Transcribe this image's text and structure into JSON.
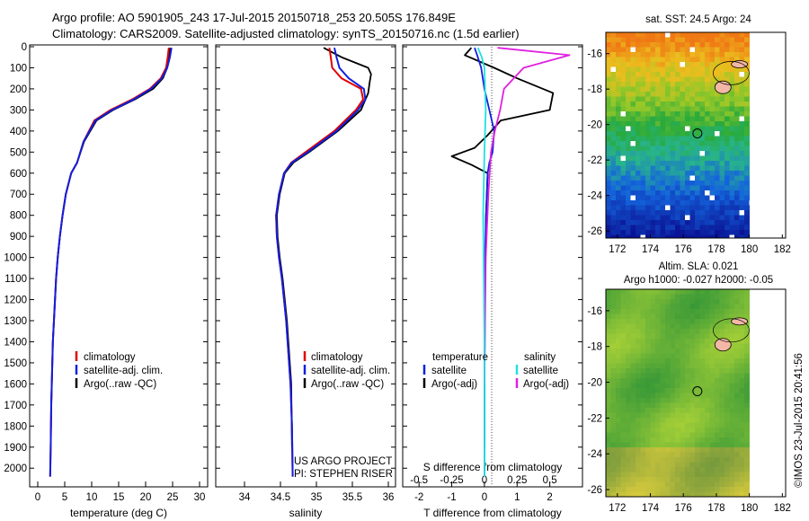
{
  "header": {
    "line1": "Argo profile: AO 5901905_243 17-Jul-2015 20150718_253 20.505S 176.849E",
    "line2": "Climatology: CARS2009. Satellite-adjusted climatology: synTS_20150716.nc (1.5d earlier)"
  },
  "colors": {
    "climatology": "#e00000",
    "satellite": "#1020e0",
    "argo": "#000000",
    "sal_satellite": "#20e0e0",
    "sal_argo": "#e020e0"
  },
  "chart_data": [
    {
      "type": "line",
      "title": "",
      "xlabel": "temperature (deg C)",
      "ylabel": "",
      "xlim": [
        -1.5,
        31.5
      ],
      "ylim": [
        2080,
        0
      ],
      "xticks": [
        "0",
        "5",
        "10",
        "15",
        "20",
        "25",
        "30"
      ],
      "yticks": [
        "0",
        "100",
        "200",
        "300",
        "400",
        "500",
        "600",
        "700",
        "800",
        "900",
        "1000",
        "1100",
        "1200",
        "1300",
        "1400",
        "1500",
        "1600",
        "1700",
        "1800",
        "1900",
        "2000"
      ],
      "legend": [
        "climatology",
        "satellite-adj. clim.",
        "Argo(..raw -QC)"
      ],
      "series": [
        {
          "name": "climatology",
          "x": [
            24.3,
            24.1,
            23.8,
            22.8,
            20.8,
            17.5,
            13.5,
            10.5,
            8.5,
            7.3,
            6.2,
            5.2,
            4.6,
            4.1,
            3.7,
            3.4,
            3.2,
            3.0,
            2.8,
            2.7,
            2.6,
            2.5,
            2.4,
            2.3
          ],
          "y": [
            5,
            50,
            100,
            150,
            200,
            250,
            300,
            350,
            450,
            550,
            600,
            700,
            800,
            900,
            1000,
            1100,
            1200,
            1300,
            1400,
            1500,
            1600,
            1700,
            1900,
            2040
          ]
        },
        {
          "name": "satellite-adj. clim.",
          "x": [
            24.8,
            24.5,
            24.0,
            23.0,
            21.0,
            17.8,
            13.8,
            10.7,
            8.5,
            7.3,
            6.2,
            5.2,
            4.6,
            4.1,
            3.7,
            3.4,
            3.2,
            3.0,
            2.8,
            2.7,
            2.6,
            2.5,
            2.4,
            2.3
          ],
          "y": [
            5,
            50,
            100,
            150,
            200,
            250,
            300,
            350,
            450,
            550,
            600,
            700,
            800,
            900,
            1000,
            1100,
            1200,
            1300,
            1400,
            1500,
            1600,
            1700,
            1900,
            2040
          ]
        },
        {
          "name": "Argo(..raw -QC)",
          "x": [
            24.5,
            24.3,
            24.0,
            23.2,
            21.4,
            18.0,
            14.0,
            10.9,
            8.6,
            7.3,
            6.2,
            5.2,
            4.6,
            4.1,
            3.7,
            3.4,
            3.2,
            3.0,
            2.8,
            2.7,
            2.6,
            2.5,
            2.4
          ],
          "y": [
            5,
            50,
            100,
            150,
            200,
            250,
            300,
            350,
            450,
            550,
            600,
            700,
            800,
            900,
            1000,
            1100,
            1200,
            1300,
            1400,
            1500,
            1600,
            1700,
            1900
          ]
        }
      ],
      "annotations": []
    },
    {
      "type": "line",
      "xlabel": "salinity",
      "xlim": [
        33.6,
        36.1
      ],
      "ylim": [
        2080,
        0
      ],
      "xticks": [
        "34",
        "34.5",
        "35",
        "35.5",
        "36"
      ],
      "legend": [
        "climatology",
        "satellite-adj. clim.",
        "Argo(..raw -QC)"
      ],
      "series": [
        {
          "name": "climatology",
          "x": [
            35.18,
            35.2,
            35.22,
            35.35,
            35.62,
            35.65,
            35.55,
            35.25,
            34.85,
            34.65,
            34.55,
            34.48,
            34.44,
            34.45,
            34.48,
            34.52,
            34.55,
            34.58,
            34.6,
            34.62,
            34.64,
            34.66,
            34.67
          ],
          "y": [
            5,
            50,
            100,
            150,
            200,
            250,
            300,
            400,
            500,
            550,
            600,
            700,
            800,
            900,
            1000,
            1100,
            1200,
            1300,
            1400,
            1500,
            1600,
            1800,
            2040
          ]
        },
        {
          "name": "satellite-adj. clim.",
          "x": [
            35.25,
            35.28,
            35.32,
            35.45,
            35.66,
            35.68,
            35.58,
            35.28,
            34.88,
            34.66,
            34.55,
            34.48,
            34.44,
            34.45,
            34.48,
            34.52,
            34.55,
            34.58,
            34.6,
            34.62,
            34.64,
            34.66,
            34.67
          ],
          "y": [
            5,
            50,
            100,
            150,
            200,
            250,
            300,
            400,
            500,
            550,
            600,
            700,
            800,
            900,
            1000,
            1100,
            1200,
            1300,
            1400,
            1500,
            1600,
            1800,
            2040
          ]
        },
        {
          "name": "Argo(..raw -QC)",
          "x": [
            35.1,
            35.35,
            35.72,
            35.76,
            35.74,
            35.72,
            35.62,
            35.3,
            34.9,
            34.68,
            34.56,
            34.49,
            34.45,
            34.46,
            34.49,
            34.53,
            34.56,
            34.59,
            34.61,
            34.63,
            34.65,
            34.66
          ],
          "y": [
            5,
            50,
            100,
            130,
            170,
            220,
            300,
            400,
            500,
            550,
            600,
            700,
            800,
            900,
            1000,
            1100,
            1200,
            1300,
            1400,
            1500,
            1600,
            1900
          ]
        }
      ],
      "annotations": [
        "US ARGO PROJECT",
        "PI: STEPHEN RISER"
      ]
    },
    {
      "type": "line",
      "xlabel": "T difference from climatology",
      "xlabel_top": "S difference from climatology",
      "xlim": [
        -2.5,
        3
      ],
      "ylim": [
        2080,
        0
      ],
      "xticks": [
        "-2",
        "-1",
        "0",
        "1",
        "2"
      ],
      "xticks_top": [
        "-0.5",
        "-0.25",
        "0",
        "0.25",
        "0.5"
      ],
      "legend_temperature": [
        "temperature",
        "satellite",
        "Argo(-adj)"
      ],
      "legend_salinity": [
        "salinity",
        "satellite",
        "Argo(-adj)"
      ],
      "series": [
        {
          "name": "temperature satellite",
          "x": [
            -0.3,
            -0.2,
            -0.1,
            0.0,
            0.15,
            0.3,
            0.25,
            0.15,
            0.1,
            0.05,
            0.02,
            0.0,
            0.0
          ],
          "y": [
            5,
            50,
            100,
            200,
            300,
            400,
            500,
            550,
            600,
            800,
            1000,
            1500,
            2040
          ]
        },
        {
          "name": "temperature Argo(-adj)",
          "x": [
            -0.4,
            -0.6,
            0.3,
            1.0,
            2.1,
            2.0,
            0.5,
            0.1,
            -0.3,
            -1.0,
            -0.4,
            0.1,
            0.05,
            0.02,
            0.0,
            0.0
          ],
          "y": [
            5,
            40,
            100,
            150,
            220,
            300,
            350,
            420,
            480,
            520,
            560,
            600,
            800,
            1200,
            1600,
            1900
          ]
        },
        {
          "name": "salinity satellite",
          "x": [
            -0.05,
            -0.02,
            0.0,
            0.01,
            0.0,
            -0.01,
            0.0,
            0.0
          ],
          "y": [
            5,
            50,
            100,
            300,
            500,
            800,
            1400,
            2040
          ]
        },
        {
          "name": "salinity Argo(-adj)",
          "x": [
            0.1,
            0.65,
            0.3,
            0.15,
            0.12,
            0.08,
            0.05,
            0.03,
            0.01,
            0.0
          ],
          "y": [
            5,
            40,
            100,
            200,
            300,
            400,
            500,
            700,
            1000,
            1600
          ]
        }
      ],
      "annotations": []
    },
    {
      "type": "heatmap",
      "title": "sat. SST: 24.5 Argo: 24",
      "xticks": [
        "172",
        "174",
        "176",
        "178",
        "180",
        "182"
      ],
      "yticks": [
        "-16",
        "-18",
        "-20",
        "-22",
        "-24",
        "-26"
      ],
      "xlim": [
        171.3,
        182.2
      ],
      "ylim": [
        -14.8,
        -26.4
      ],
      "marker": {
        "lon": 176.85,
        "lat": -20.5
      }
    },
    {
      "type": "heatmap",
      "title": "Altim. SLA: 0.021",
      "subtitle": "Argo h1000: -0.027 h2000: -0.05",
      "xticks": [
        "172",
        "174",
        "176",
        "178",
        "180",
        "182"
      ],
      "yticks": [
        "-16",
        "-18",
        "-20",
        "-22",
        "-24",
        "-26"
      ],
      "xlim": [
        171.3,
        182.2
      ],
      "ylim": [
        -14.8,
        -26.4
      ],
      "marker": {
        "lon": 176.85,
        "lat": -20.5
      }
    }
  ],
  "footer": {
    "credit": "©IMOS 23-Jul-2015 20:41:56"
  }
}
